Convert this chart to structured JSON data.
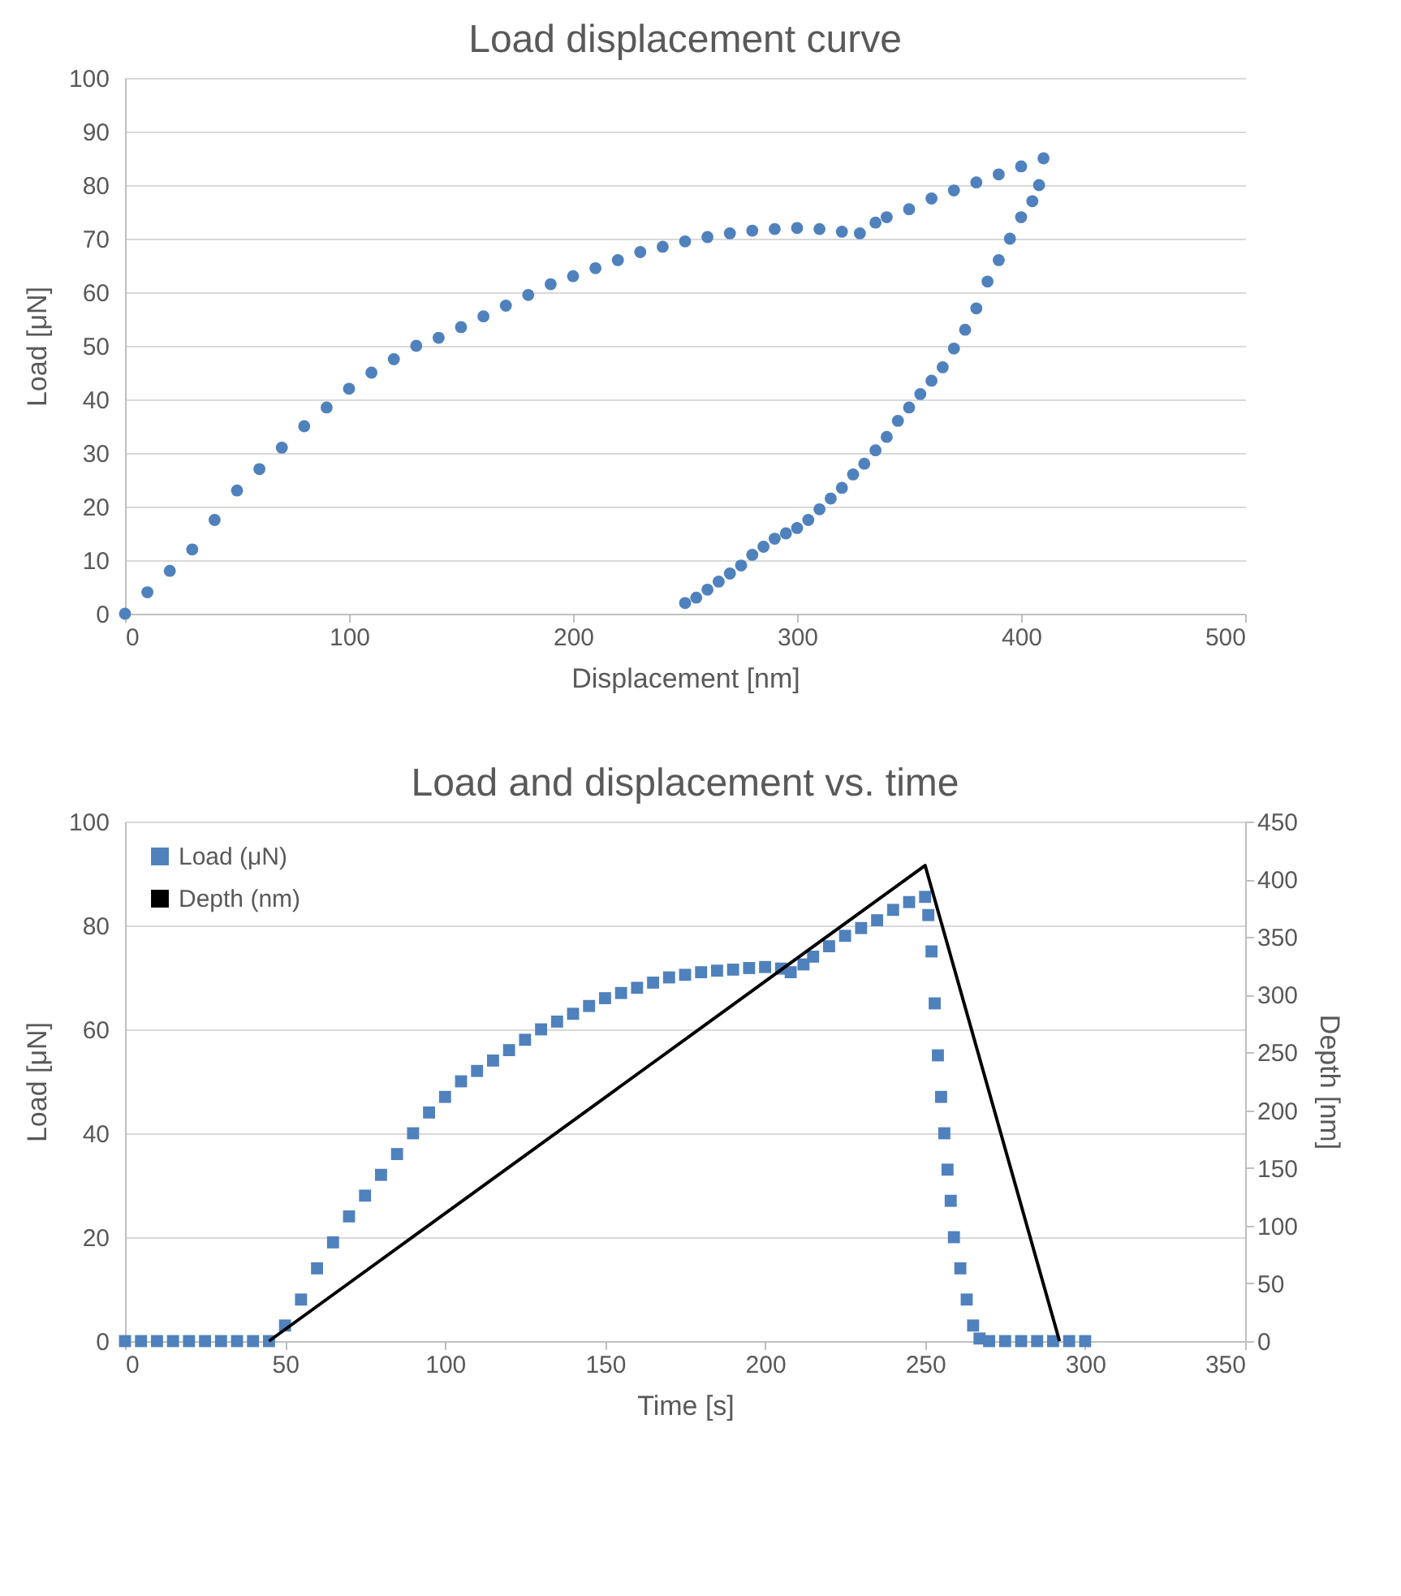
{
  "chart_data": [
    {
      "type": "scatter",
      "title": "Load displacement curve",
      "xlabel": "Displacement  [nm]",
      "ylabel": "Load [μN]",
      "marker": "circle",
      "xlim": [
        0,
        500
      ],
      "xticks": [
        0,
        100,
        200,
        300,
        400,
        500
      ],
      "ylim": [
        0,
        100
      ],
      "yticks": [
        0,
        10,
        20,
        30,
        40,
        50,
        60,
        70,
        80,
        90,
        100
      ],
      "grid": "y",
      "series": [
        {
          "color": "#4f81bd",
          "x": [
            0,
            10,
            20,
            30,
            40,
            50,
            60,
            70,
            80,
            90,
            100,
            110,
            120,
            130,
            140,
            150,
            160,
            170,
            180,
            190,
            200,
            210,
            220,
            230,
            240,
            250,
            260,
            270,
            280,
            290,
            300,
            310,
            320,
            328,
            335,
            340,
            350,
            360,
            370,
            380,
            390,
            400,
            410,
            408,
            405,
            400,
            395,
            390,
            385,
            380,
            375,
            370,
            365,
            360,
            355,
            350,
            345,
            340,
            335,
            330,
            325,
            320,
            315,
            310,
            305,
            300,
            295,
            290,
            285,
            280,
            275,
            270,
            265,
            260,
            255,
            250
          ],
          "values": [
            0,
            4,
            8,
            12,
            17.5,
            23,
            27,
            31,
            35,
            38.5,
            42,
            45,
            47.5,
            50,
            51.5,
            53.5,
            55.5,
            57.5,
            59.5,
            61.5,
            63,
            64.5,
            66,
            67.5,
            68.5,
            69.5,
            70.3,
            71,
            71.5,
            71.8,
            72,
            71.8,
            71.3,
            71,
            73,
            74,
            75.5,
            77.5,
            79,
            80.5,
            82,
            83.5,
            85,
            80,
            77,
            74,
            70,
            66,
            62,
            57,
            53,
            49.5,
            46,
            43.5,
            41,
            38.5,
            36,
            33,
            30.5,
            28,
            26,
            23.5,
            21.5,
            19.5,
            17.5,
            16,
            15,
            14,
            12.5,
            11,
            9,
            7.5,
            6,
            4.5,
            3,
            2
          ]
        }
      ]
    },
    {
      "type": "scatter",
      "title": "Load and displacement vs. time",
      "xlabel": "Time [s]",
      "ylabel": "Load [μN]",
      "y2label": "Depth [nm]",
      "xlim": [
        0,
        350
      ],
      "xticks": [
        0,
        50,
        100,
        150,
        200,
        250,
        300,
        350
      ],
      "ylim": [
        0,
        100
      ],
      "yticks": [
        0,
        20,
        40,
        60,
        80,
        100
      ],
      "y2lim": [
        0,
        450
      ],
      "y2ticks": [
        0,
        50,
        100,
        150,
        200,
        250,
        300,
        350,
        400,
        450
      ],
      "grid": "y",
      "legend": "top left",
      "series": [
        {
          "name": "Load (μN)",
          "color": "#4f81bd",
          "marker": "square",
          "x": [
            0,
            5,
            10,
            15,
            20,
            25,
            30,
            35,
            40,
            45,
            50,
            55,
            60,
            65,
            70,
            75,
            80,
            85,
            90,
            95,
            100,
            105,
            110,
            115,
            120,
            125,
            130,
            135,
            140,
            145,
            150,
            155,
            160,
            165,
            170,
            175,
            180,
            185,
            190,
            195,
            200,
            205,
            208,
            212,
            215,
            220,
            225,
            230,
            235,
            240,
            245,
            250,
            251,
            252,
            253,
            254,
            255,
            256,
            257,
            258,
            259,
            261,
            263,
            265,
            267,
            270,
            275,
            280,
            285,
            290,
            295,
            300
          ],
          "values": [
            0,
            0,
            0,
            0,
            0,
            0,
            0,
            0,
            0,
            0,
            3,
            8,
            14,
            19,
            24,
            28,
            32,
            36,
            40,
            44,
            47,
            50,
            52,
            54,
            56,
            58,
            60,
            61.5,
            63,
            64.5,
            66,
            67,
            68,
            69,
            70,
            70.5,
            71,
            71.3,
            71.5,
            71.8,
            72,
            71.7,
            71,
            72.5,
            74,
            76,
            78,
            79.5,
            81,
            83,
            84.5,
            85.5,
            82,
            75,
            65,
            55,
            47,
            40,
            33,
            27,
            20,
            14,
            8,
            3,
            0.5,
            0,
            0,
            0,
            0,
            0,
            0,
            0
          ]
        },
        {
          "name": "Depth (nm)",
          "type": "line",
          "color": "#000000",
          "axis": "y2",
          "x": [
            45,
            250,
            292
          ],
          "values": [
            0,
            412,
            0
          ]
        }
      ]
    }
  ]
}
